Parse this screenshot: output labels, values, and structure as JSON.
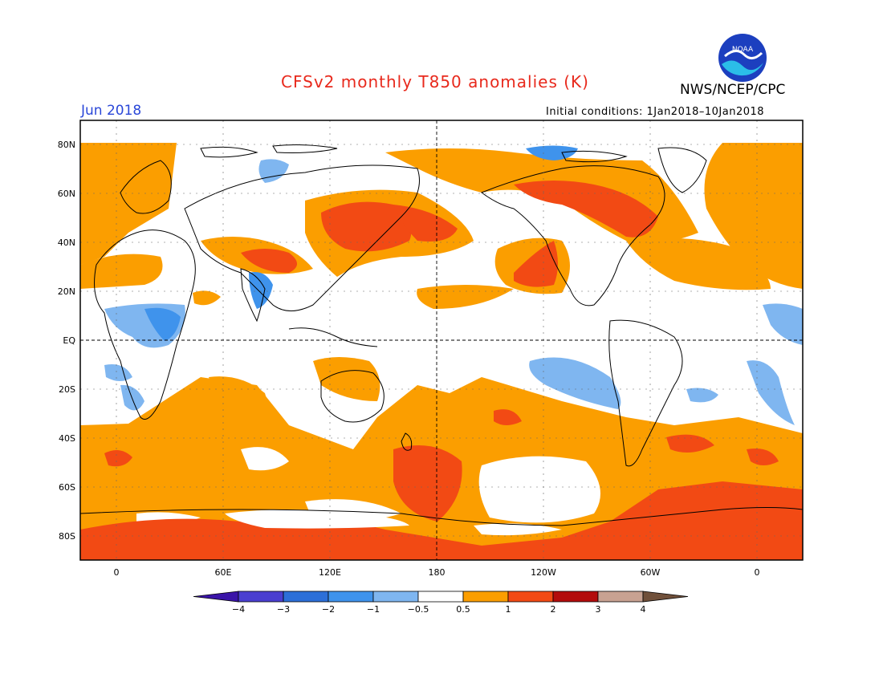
{
  "title": "CFSv2 monthly T850 anomalies (K)",
  "agency": "NWS/NCEP/CPC",
  "logo_text": "NOAA",
  "period": "Jun 2018",
  "initial_conditions": "Initial conditions: 1Jan2018–10Jan2018",
  "lat_ticks": [
    "80N",
    "60N",
    "40N",
    "20N",
    "EQ",
    "20S",
    "40S",
    "60S",
    "80S"
  ],
  "lon_ticks": [
    "0",
    "60E",
    "120E",
    "180",
    "120W",
    "60W",
    "0"
  ],
  "colorbar": {
    "labels": [
      "−4",
      "−3",
      "−2",
      "−1",
      "−0.5",
      "0.5",
      "1",
      "2",
      "3",
      "4"
    ],
    "colors": [
      "#3a14a8",
      "#4a3fd0",
      "#2c6fd8",
      "#3f93ec",
      "#7fb6f0",
      "#ffffff",
      "#fb9e00",
      "#f24a14",
      "#b30c0c",
      "#c8a292",
      "#70503a"
    ]
  }
}
